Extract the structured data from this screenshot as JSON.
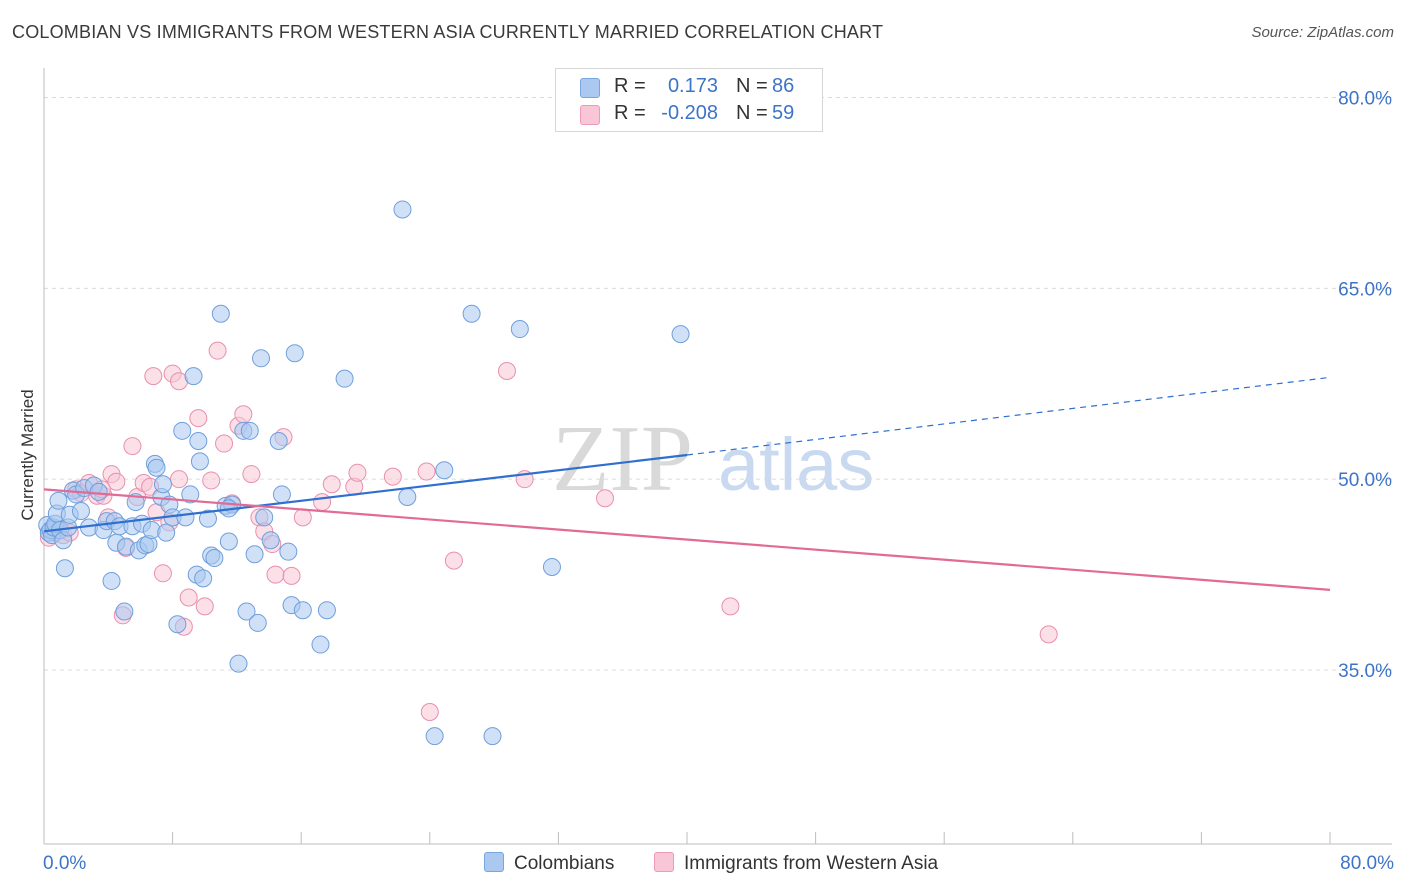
{
  "title": "COLOMBIAN VS IMMIGRANTS FROM WESTERN ASIA CURRENTLY MARRIED CORRELATION CHART",
  "source": "Source: ZipAtlas.com",
  "watermark": {
    "zip": "ZIP",
    "atlas": "atlas"
  },
  "legend": {
    "rows": [
      {
        "r_label": "R =",
        "r_value": "0.173",
        "n_label": "N =",
        "n_value": "86",
        "color": "#aac8f0",
        "stroke": "#7aa6e0"
      },
      {
        "r_label": "R =",
        "r_value": "-0.208",
        "n_label": "N =",
        "n_value": "59",
        "color": "#f8c6d6",
        "stroke": "#ec9ab5"
      }
    ]
  },
  "bottom_legend": {
    "colombians": "Colombians",
    "immigrants": "Immigrants from Western Asia"
  },
  "x_ticks": {
    "left": "0.0%",
    "right": "80.0%"
  },
  "chart_data": {
    "type": "scatter",
    "title": "COLOMBIAN VS IMMIGRANTS FROM WESTERN ASIA CURRENTLY MARRIED CORRELATION CHART",
    "xlabel": "",
    "ylabel": "Currently Married",
    "xlim": [
      0,
      80
    ],
    "ylim": [
      20,
      82
    ],
    "y_ticks": [
      80.0,
      65.0,
      50.0,
      35.0
    ],
    "y_tick_labels": [
      "80.0%",
      "65.0%",
      "50.0%",
      "35.0%"
    ],
    "grid": true,
    "legend_position": "top-center",
    "colors": {
      "blue_fill": "#aac8f0",
      "blue_stroke": "#6f9fdc",
      "blue_line": "#2f6fcf",
      "pink_fill": "#f8c6d6",
      "pink_stroke": "#e98fae",
      "pink_line": "#e26a96"
    },
    "series": [
      {
        "name": "Colombians",
        "color": "blue",
        "points": [
          [
            0.2,
            46.4
          ],
          [
            0.3,
            45.8
          ],
          [
            0.4,
            46.0
          ],
          [
            0.5,
            45.6
          ],
          [
            0.6,
            46.2
          ],
          [
            0.7,
            46.5
          ],
          [
            0.8,
            47.3
          ],
          [
            0.9,
            48.3
          ],
          [
            1.0,
            46.0
          ],
          [
            1.2,
            45.2
          ],
          [
            1.3,
            43.0
          ],
          [
            1.5,
            46.2
          ],
          [
            1.6,
            47.2
          ],
          [
            1.8,
            49.1
          ],
          [
            2.0,
            48.8
          ],
          [
            2.3,
            47.5
          ],
          [
            2.5,
            49.3
          ],
          [
            2.8,
            46.2
          ],
          [
            3.1,
            49.5
          ],
          [
            3.4,
            49.0
          ],
          [
            3.7,
            46.0
          ],
          [
            3.9,
            46.7
          ],
          [
            4.2,
            42.0
          ],
          [
            4.4,
            46.7
          ],
          [
            4.5,
            45.0
          ],
          [
            4.7,
            46.3
          ],
          [
            5.0,
            39.6
          ],
          [
            5.1,
            44.7
          ],
          [
            5.5,
            46.3
          ],
          [
            5.7,
            48.2
          ],
          [
            5.9,
            44.4
          ],
          [
            6.1,
            46.5
          ],
          [
            6.3,
            44.8
          ],
          [
            6.5,
            44.9
          ],
          [
            6.7,
            46.0
          ],
          [
            6.9,
            51.2
          ],
          [
            7.0,
            50.9
          ],
          [
            7.3,
            48.6
          ],
          [
            7.4,
            49.6
          ],
          [
            7.6,
            45.8
          ],
          [
            7.8,
            48.0
          ],
          [
            8.0,
            47.0
          ],
          [
            8.3,
            38.6
          ],
          [
            8.6,
            53.8
          ],
          [
            8.8,
            47.0
          ],
          [
            9.1,
            48.8
          ],
          [
            9.3,
            58.1
          ],
          [
            9.5,
            42.5
          ],
          [
            9.6,
            53.0
          ],
          [
            9.7,
            51.4
          ],
          [
            9.9,
            42.2
          ],
          [
            10.2,
            46.9
          ],
          [
            10.4,
            44.0
          ],
          [
            10.6,
            43.8
          ],
          [
            11.0,
            63.0
          ],
          [
            11.3,
            47.9
          ],
          [
            11.5,
            45.1
          ],
          [
            11.7,
            48.0
          ],
          [
            12.1,
            35.5
          ],
          [
            12.4,
            53.8
          ],
          [
            12.6,
            39.6
          ],
          [
            12.8,
            53.8
          ],
          [
            13.1,
            44.1
          ],
          [
            13.3,
            38.7
          ],
          [
            13.5,
            59.5
          ],
          [
            13.7,
            47.0
          ],
          [
            14.1,
            45.2
          ],
          [
            14.6,
            53.0
          ],
          [
            14.8,
            48.8
          ],
          [
            15.2,
            44.3
          ],
          [
            15.4,
            40.1
          ],
          [
            15.6,
            59.9
          ],
          [
            16.1,
            39.7
          ],
          [
            17.2,
            37.0
          ],
          [
            17.6,
            39.7
          ],
          [
            18.7,
            57.9
          ],
          [
            22.3,
            71.2
          ],
          [
            22.6,
            48.6
          ],
          [
            24.3,
            29.8
          ],
          [
            24.9,
            50.7
          ],
          [
            26.6,
            63.0
          ],
          [
            27.9,
            29.8
          ],
          [
            29.6,
            61.8
          ],
          [
            31.6,
            43.1
          ],
          [
            39.6,
            61.4
          ],
          [
            11.5,
            47.7
          ]
        ]
      },
      {
        "name": "Immigrants from Western Asia",
        "color": "pink",
        "points": [
          [
            0.3,
            45.4
          ],
          [
            0.5,
            46.0
          ],
          [
            0.7,
            45.8
          ],
          [
            0.9,
            46.0
          ],
          [
            1.2,
            45.6
          ],
          [
            1.6,
            45.8
          ],
          [
            2.0,
            49.2
          ],
          [
            2.3,
            48.9
          ],
          [
            2.8,
            49.7
          ],
          [
            3.3,
            48.7
          ],
          [
            3.7,
            48.7
          ],
          [
            4.0,
            47.0
          ],
          [
            4.2,
            50.4
          ],
          [
            4.5,
            49.8
          ],
          [
            4.9,
            39.3
          ],
          [
            5.1,
            44.6
          ],
          [
            5.5,
            52.6
          ],
          [
            5.8,
            48.6
          ],
          [
            6.2,
            49.7
          ],
          [
            6.6,
            49.4
          ],
          [
            6.8,
            58.1
          ],
          [
            7.0,
            47.4
          ],
          [
            7.4,
            42.6
          ],
          [
            7.8,
            46.6
          ],
          [
            8.0,
            58.3
          ],
          [
            8.4,
            50.0
          ],
          [
            8.4,
            57.7
          ],
          [
            8.7,
            38.4
          ],
          [
            9.0,
            40.7
          ],
          [
            9.6,
            54.8
          ],
          [
            10.0,
            40.0
          ],
          [
            10.4,
            49.9
          ],
          [
            10.8,
            60.1
          ],
          [
            11.2,
            52.8
          ],
          [
            11.7,
            48.1
          ],
          [
            12.1,
            54.2
          ],
          [
            12.4,
            55.1
          ],
          [
            12.9,
            50.4
          ],
          [
            13.4,
            47.0
          ],
          [
            13.7,
            45.9
          ],
          [
            14.2,
            44.9
          ],
          [
            14.4,
            42.5
          ],
          [
            14.9,
            53.3
          ],
          [
            15.4,
            42.4
          ],
          [
            16.1,
            47.0
          ],
          [
            17.3,
            48.2
          ],
          [
            17.9,
            49.6
          ],
          [
            19.3,
            49.4
          ],
          [
            19.5,
            50.5
          ],
          [
            21.7,
            50.2
          ],
          [
            23.8,
            50.6
          ],
          [
            24.0,
            31.7
          ],
          [
            25.5,
            43.6
          ],
          [
            28.8,
            58.5
          ],
          [
            29.9,
            50.0
          ],
          [
            34.9,
            48.5
          ],
          [
            42.7,
            40.0
          ],
          [
            62.5,
            37.8
          ],
          [
            3.6,
            49.2
          ]
        ]
      }
    ],
    "trend_lines": [
      {
        "series": "Colombians",
        "solid": [
          [
            0,
            45.9
          ],
          [
            40,
            51.9
          ]
        ],
        "dashed": [
          [
            40,
            51.9
          ],
          [
            80,
            58.0
          ]
        ]
      },
      {
        "series": "Immigrants from Western Asia",
        "solid": [
          [
            0,
            49.2
          ],
          [
            80,
            41.3
          ]
        ]
      }
    ]
  }
}
